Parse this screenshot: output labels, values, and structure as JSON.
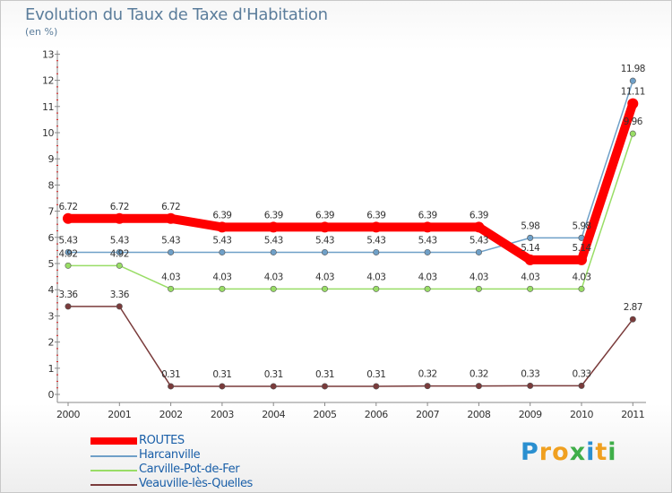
{
  "chart_data": {
    "type": "line",
    "title": "Evolution du Taux de Taxe d'Habitation",
    "subtitle": "(en %)",
    "xlabel": "",
    "ylabel": "",
    "ylim": [
      0,
      13
    ],
    "yticks": [
      0,
      1,
      2,
      3,
      4,
      5,
      6,
      7,
      8,
      9,
      10,
      11,
      12,
      13
    ],
    "categories": [
      "2000",
      "2001",
      "2002",
      "2003",
      "2004",
      "2005",
      "2006",
      "2007",
      "2008",
      "2009",
      "2010",
      "2011"
    ],
    "grid": false,
    "legend_position": "bottom-left",
    "series": [
      {
        "name": "ROUTES",
        "color": "#ff0000",
        "values": [
          6.72,
          6.72,
          6.72,
          6.39,
          6.39,
          6.39,
          6.39,
          6.39,
          6.39,
          5.14,
          5.14,
          11.11
        ],
        "labels": [
          "6.72",
          "6.72",
          "6.72",
          "6.39",
          "6.39",
          "6.39",
          "6.39",
          "6.39",
          "6.39",
          "5.14",
          "5.14",
          "11.11"
        ]
      },
      {
        "name": "Harcanville",
        "color": "#6fa0c8",
        "values": [
          5.43,
          5.43,
          5.43,
          5.43,
          5.43,
          5.43,
          5.43,
          5.43,
          5.43,
          5.98,
          5.98,
          11.98
        ],
        "labels": [
          "5.43",
          "5.43",
          "5.43",
          "5.43",
          "5.43",
          "5.43",
          "5.43",
          "5.43",
          "5.43",
          "5.98",
          "5.98",
          "11.98"
        ]
      },
      {
        "name": "Carville-Pot-de-Fer",
        "color": "#99dd66",
        "values": [
          4.92,
          4.92,
          4.03,
          4.03,
          4.03,
          4.03,
          4.03,
          4.03,
          4.03,
          4.03,
          4.03,
          9.96
        ],
        "labels": [
          "4.92",
          "4.92",
          "4.03",
          "4.03",
          "4.03",
          "4.03",
          "4.03",
          "4.03",
          "4.03",
          "4.03",
          "4.03",
          "9.96"
        ]
      },
      {
        "name": "Veauville-lès-Quelles",
        "color": "#7a3b3b",
        "values": [
          3.36,
          3.36,
          0.31,
          0.31,
          0.31,
          0.31,
          0.31,
          0.32,
          0.32,
          0.33,
          0.33,
          2.87
        ],
        "labels": [
          "3.36",
          "3.36",
          "0.31",
          "0.31",
          "0.31",
          "0.31",
          "0.31",
          "0.32",
          "0.32",
          "0.33",
          "0.33",
          "2.87"
        ]
      }
    ]
  },
  "logo": {
    "letters": [
      "P",
      "r",
      "o",
      "x",
      "i",
      "t",
      "i"
    ],
    "colors": [
      "#2a8fd0",
      "#f0a020",
      "#f0a020",
      "#3fae49",
      "#2a8fd0",
      "#f0a020",
      "#3fae49"
    ]
  }
}
